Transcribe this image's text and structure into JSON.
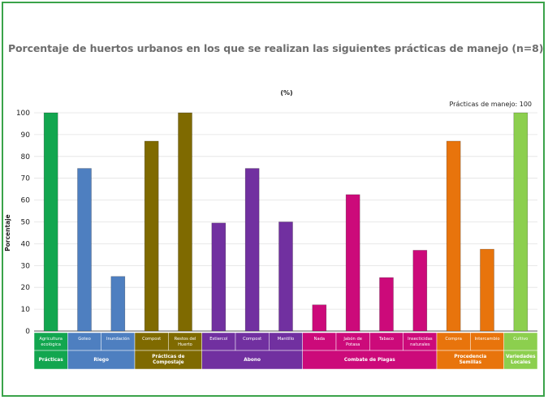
{
  "title": "Porcentaje de huertos urbanos en los que se realizan las siguientes prácticas de manejo (n=8)",
  "chart_data": {
    "type": "bar",
    "unit_label": "(%)",
    "ylabel": "Porcentaje",
    "xlabel": "",
    "ylim": [
      0,
      100
    ],
    "yticks": [
      0,
      10,
      20,
      30,
      40,
      50,
      60,
      70,
      80,
      90,
      100
    ],
    "grid": true,
    "annotation": "Prácticas de manejo: 100",
    "groups": [
      {
        "name": "Prácticas",
        "color": "#12a64f",
        "text_color": "#ffffff",
        "bars": [
          {
            "label": "Agricultura ecológica",
            "value": 100
          }
        ]
      },
      {
        "name": "Riego",
        "color": "#4e7fc0",
        "text_color": "#ffffff",
        "bars": [
          {
            "label": "Goteo",
            "value": 74.5
          },
          {
            "label": "Inundación",
            "value": 25
          }
        ]
      },
      {
        "name": "Prácticas de Compostaje",
        "color": "#7f6a00",
        "text_color": "#ffffff",
        "bars": [
          {
            "label": "Compost",
            "value": 87
          },
          {
            "label": "Restos del Huerto",
            "value": 100
          }
        ]
      },
      {
        "name": "Abono",
        "color": "#7130a0",
        "text_color": "#ffffff",
        "bars": [
          {
            "label": "Estiercol",
            "value": 49.5
          },
          {
            "label": "Compost",
            "value": 74.5
          },
          {
            "label": "Mantillo",
            "value": 50
          }
        ]
      },
      {
        "name": "Combate de Plagas",
        "color": "#cc0a7a",
        "text_color": "#ffffff",
        "bars": [
          {
            "label": "Nada",
            "value": 12
          },
          {
            "label": "Jabón de Potasa",
            "value": 62.5
          },
          {
            "label": "Tabaco",
            "value": 24.5
          },
          {
            "label": "Insecticidas naturales",
            "value": 37
          }
        ]
      },
      {
        "name": "Procedencia Semillas",
        "color": "#e8740c",
        "text_color": "#ffffff",
        "bars": [
          {
            "label": "Compra",
            "value": 87
          },
          {
            "label": "Intercambio",
            "value": 37.5
          }
        ]
      },
      {
        "name": "Variedades Locales",
        "color": "#8ccf4e",
        "text_color": "#ffffff",
        "bars": [
          {
            "label": "Cultivo",
            "value": 100
          }
        ]
      }
    ]
  }
}
